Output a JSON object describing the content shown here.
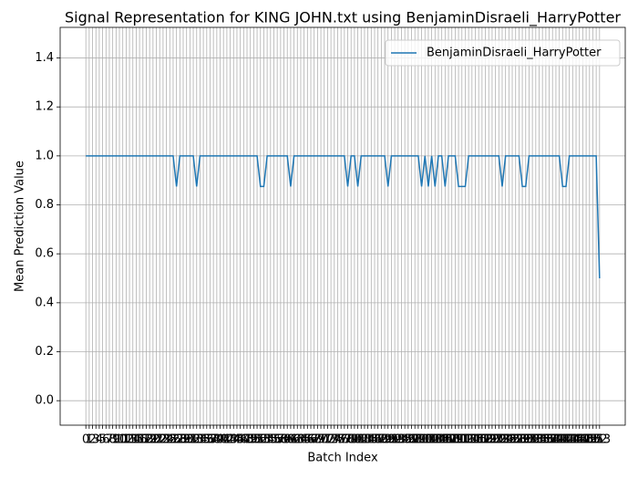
{
  "chart_data": {
    "type": "line",
    "title": "Signal Representation for KING JOHN.txt using BenjaminDisraeli_HarryPotter",
    "xlabel": "Batch Index",
    "ylabel": "Mean Prediction Value",
    "x": [
      0,
      1,
      2,
      3,
      4,
      5,
      6,
      7,
      8,
      9,
      10,
      11,
      12,
      13,
      14,
      15,
      16,
      17,
      18,
      19,
      20,
      21,
      22,
      23,
      24,
      25,
      26,
      27,
      28,
      29,
      30,
      31,
      32,
      33,
      34,
      35,
      36,
      37,
      38,
      39,
      40,
      41,
      42,
      43,
      44,
      45,
      46,
      47,
      48,
      49,
      50,
      51,
      52,
      53,
      54,
      55,
      56,
      57,
      58,
      59,
      60,
      61,
      62,
      63,
      64,
      65,
      66,
      67,
      68,
      69,
      70,
      71,
      72,
      73,
      74,
      75,
      76,
      77,
      78,
      79,
      80,
      81,
      82,
      83,
      84,
      85,
      86,
      87,
      88,
      89,
      90,
      91,
      92,
      93,
      94,
      95,
      96,
      97,
      98,
      99,
      100,
      101,
      102,
      103,
      104,
      105,
      106,
      107,
      108,
      109,
      110,
      111,
      112,
      113,
      114,
      115,
      116,
      117,
      118,
      119,
      120,
      121,
      122,
      123,
      124,
      125,
      126,
      127,
      128,
      129,
      130,
      131,
      132,
      133,
      134,
      135,
      136,
      137,
      138,
      139,
      140,
      141,
      142,
      143,
      144,
      145,
      146,
      147,
      148,
      149,
      150,
      151,
      152,
      153
    ],
    "series": [
      {
        "name": "BenjaminDisraeli_HarryPotter",
        "color": "#1f77b4",
        "values": [
          1,
          1,
          1,
          1,
          1,
          1,
          1,
          1,
          1,
          1,
          1,
          1,
          1,
          1,
          1,
          1,
          1,
          1,
          1,
          1,
          1,
          1,
          1,
          1,
          1,
          1,
          1,
          0.875,
          1,
          1,
          1,
          1,
          1,
          0.875,
          1,
          1,
          1,
          1,
          1,
          1,
          1,
          1,
          1,
          1,
          1,
          1,
          1,
          1,
          1,
          1,
          1,
          1,
          0.875,
          0.875,
          1,
          1,
          1,
          1,
          1,
          1,
          1,
          0.875,
          1,
          1,
          1,
          1,
          1,
          1,
          1,
          1,
          1,
          1,
          1,
          1,
          1,
          1,
          1,
          1,
          0.875,
          1,
          1,
          0.875,
          1,
          1,
          1,
          1,
          1,
          1,
          1,
          1,
          0.875,
          1,
          1,
          1,
          1,
          1,
          1,
          1,
          1,
          1,
          0.875,
          1,
          0.875,
          1,
          0.875,
          1,
          1,
          0.875,
          1,
          1,
          1,
          0.875,
          0.875,
          0.875,
          1,
          1,
          1,
          1,
          1,
          1,
          1,
          1,
          1,
          1,
          0.875,
          1,
          1,
          1,
          1,
          1,
          0.875,
          0.875,
          1,
          1,
          1,
          1,
          1,
          1,
          1,
          1,
          1,
          1,
          0.875,
          0.875,
          1,
          1,
          1,
          1,
          1,
          1,
          1,
          1,
          1,
          0.5
        ]
      }
    ],
    "xlim": [
      -7.65,
      160.65
    ],
    "xticks": [
      0,
      1,
      2,
      3,
      4,
      5,
      6,
      7,
      8,
      9,
      10,
      11,
      12,
      13,
      14,
      15,
      16,
      17,
      18,
      19,
      20,
      21,
      22,
      23,
      24,
      25,
      26,
      27,
      28,
      29,
      30,
      31,
      32,
      33,
      34,
      35,
      36,
      37,
      38,
      39,
      40,
      41,
      42,
      43,
      44,
      45,
      46,
      47,
      48,
      49,
      50,
      51,
      52,
      53,
      54,
      55,
      56,
      57,
      58,
      59,
      60,
      61,
      62,
      63,
      64,
      65,
      66,
      67,
      68,
      69,
      70,
      71,
      72,
      73,
      74,
      75,
      76,
      77,
      78,
      79,
      80,
      81,
      82,
      83,
      84,
      85,
      86,
      87,
      88,
      89,
      90,
      91,
      92,
      93,
      94,
      95,
      96,
      97,
      98,
      99,
      100,
      101,
      102,
      103,
      104,
      105,
      106,
      107,
      108,
      109,
      110,
      111,
      112,
      113,
      114,
      115,
      116,
      117,
      118,
      119,
      120,
      121,
      122,
      123,
      124,
      125,
      126,
      127,
      128,
      129,
      130,
      131,
      132,
      133,
      134,
      135,
      136,
      137,
      138,
      139,
      140,
      141,
      142,
      143,
      144,
      145,
      146,
      147,
      148,
      149,
      150,
      151,
      152,
      153
    ],
    "ylim": [
      -0.1,
      1.525
    ],
    "yticks": [
      {
        "value": 0,
        "label": "0.0"
      },
      {
        "value": 0.2,
        "label": "0.2"
      },
      {
        "value": 0.4,
        "label": "0.4"
      },
      {
        "value": 0.6,
        "label": "0.6"
      },
      {
        "value": 0.8,
        "label": "0.8"
      },
      {
        "value": 1,
        "label": "1.0"
      },
      {
        "value": 1.2,
        "label": "1.2"
      },
      {
        "value": 1.4,
        "label": "1.4"
      }
    ],
    "grid": true,
    "legend": "upper right"
  }
}
